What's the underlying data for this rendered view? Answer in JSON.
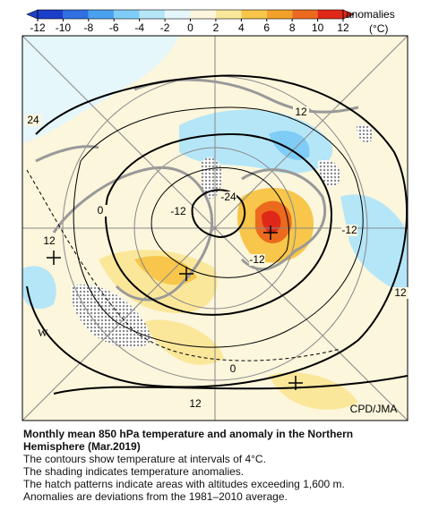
{
  "colorbar": {
    "label": "anomalies",
    "unit": "(°C)",
    "ticks": [
      -12,
      -10,
      -8,
      -6,
      -4,
      -2,
      0,
      2,
      4,
      6,
      8,
      10,
      12
    ],
    "colors": [
      "#1c3fc9",
      "#2f70e2",
      "#48a2f0",
      "#7fcdf6",
      "#b5e6f8",
      "#e6f7fb",
      "#fbf6dc",
      "#fbe79a",
      "#f7c64a",
      "#f3a12a",
      "#ec6a1d",
      "#e0281a"
    ]
  },
  "map": {
    "contour_labels": [
      "24",
      "12",
      "0",
      "-12",
      "-24",
      "12",
      "-12",
      "0",
      "12",
      "12",
      "-12"
    ],
    "letter": "W",
    "credit": "CPD/JMA"
  },
  "caption": {
    "title": "Monthly mean 850 hPa temperature and anomaly in the Northern Hemisphere (Mar.2019)",
    "lines": [
      "The contours show temperature at intervals of 4°C.",
      "The shading indicates temperature anomalies.",
      "The hatch patterns indicate areas with altitudes exceeding 1,600 m.",
      "Anomalies are deviations from the 1981–2010 average."
    ]
  }
}
